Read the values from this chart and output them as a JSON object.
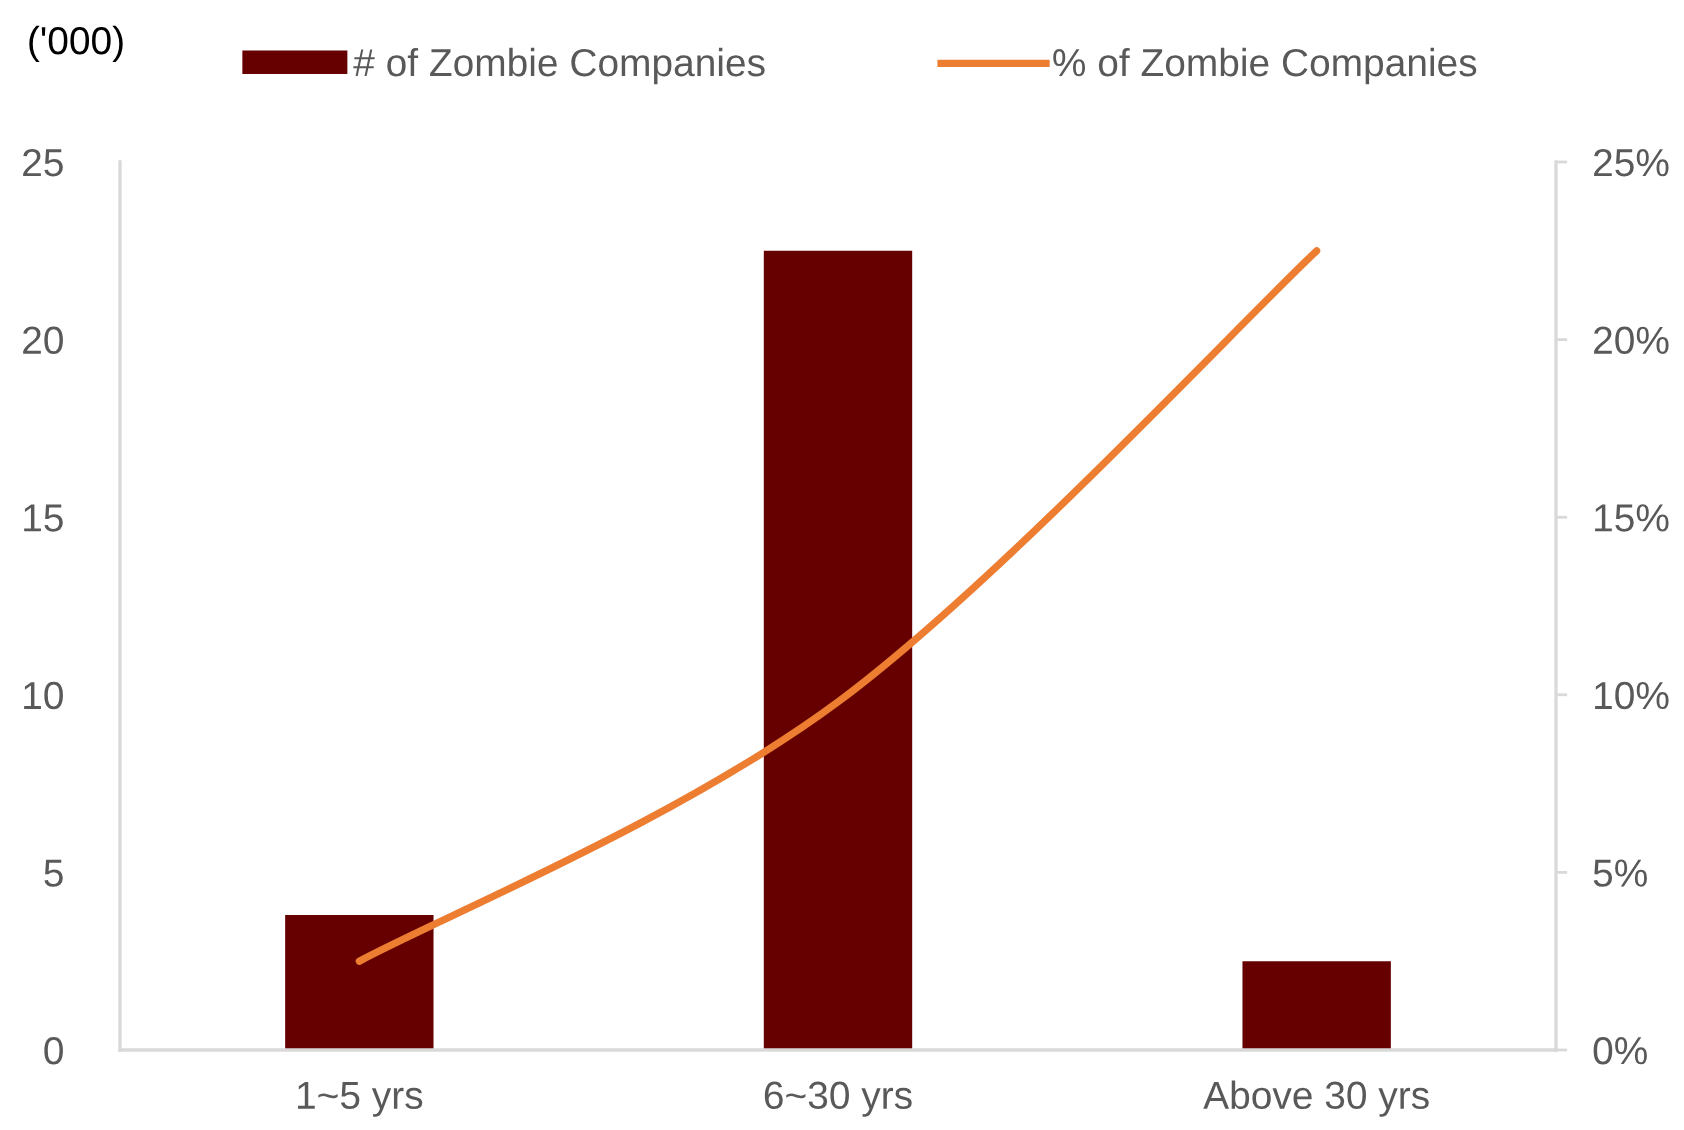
{
  "chart_data": {
    "type": "bar",
    "ylabel": "('000)",
    "categories": [
      "1~5 yrs",
      "6~30 yrs",
      "Above 30 yrs"
    ],
    "series": [
      {
        "name": "# of Zombie Companies",
        "color": "#660000",
        "values": [
          3.8,
          22.5,
          2.5
        ]
      },
      {
        "name": "% of Zombie Companies",
        "type": "line",
        "axis": "y2",
        "color": "#ed7d31",
        "values": [
          2.5,
          9.8,
          22.5
        ]
      }
    ],
    "ylim": [
      0,
      25
    ],
    "yticks": [
      0,
      5,
      10,
      15,
      20,
      25
    ],
    "y2lim": [
      0,
      25
    ],
    "y2ticks": [
      {
        "value": 0,
        "label": "0%"
      },
      {
        "value": 5,
        "label": "5%"
      },
      {
        "value": 10,
        "label": "10%"
      },
      {
        "value": 15,
        "label": "15%"
      },
      {
        "value": 20,
        "label": "20%"
      },
      {
        "value": 25,
        "label": "25%"
      }
    ],
    "legend": "top"
  }
}
